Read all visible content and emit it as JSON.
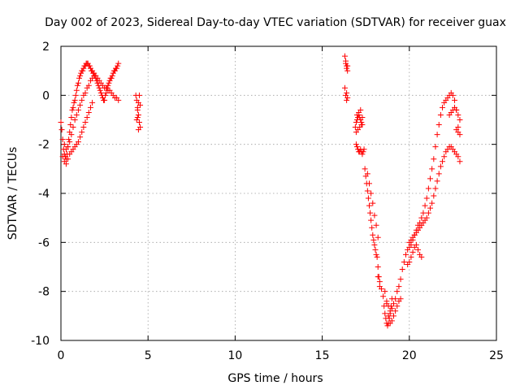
{
  "chart_data": {
    "type": "scatter",
    "title": "Day 002 of 2023, Sidereal Day-to-day VTEC variation (SDTVAR) for receiver guax",
    "xlabel": "GPS time / hours",
    "ylabel": "SDTVAR / TECUs",
    "xlim": [
      0,
      25
    ],
    "ylim": [
      -10,
      2
    ],
    "xticks": [
      0,
      5,
      10,
      15,
      20,
      25
    ],
    "yticks": [
      -10,
      -8,
      -6,
      -4,
      -2,
      0,
      2
    ],
    "xtick_labels": [
      "0",
      "5",
      "10",
      "15",
      "20",
      "25"
    ],
    "ytick_labels": [
      "-10",
      "-8",
      "-6",
      "-4",
      "-2",
      "0",
      "2"
    ],
    "grid": true,
    "marker": "+",
    "color": "#ff0000",
    "series": [
      {
        "name": "guax",
        "x": [
          0.0,
          0.05,
          0.1,
          0.15,
          0.2,
          0.25,
          0.3,
          0.35,
          0.4,
          0.45,
          0.5,
          0.55,
          0.6,
          0.65,
          0.7,
          0.75,
          0.8,
          0.85,
          0.9,
          0.95,
          1.0,
          1.05,
          1.1,
          1.15,
          1.2,
          1.25,
          1.3,
          1.35,
          1.4,
          1.45,
          1.5,
          1.55,
          1.6,
          1.65,
          1.7,
          1.75,
          1.8,
          1.85,
          1.9,
          1.95,
          2.0,
          2.05,
          2.1,
          2.15,
          2.2,
          2.25,
          2.3,
          2.35,
          2.4,
          2.45,
          2.5,
          2.55,
          2.6,
          2.65,
          2.7,
          2.75,
          2.8,
          2.85,
          2.9,
          2.95,
          3.0,
          3.05,
          3.1,
          3.15,
          3.2,
          3.25,
          3.3,
          0.2,
          0.3,
          0.4,
          0.5,
          0.6,
          0.7,
          0.8,
          0.9,
          1.0,
          1.1,
          1.2,
          1.3,
          1.4,
          1.5,
          1.6,
          1.7,
          1.8,
          1.9,
          2.0,
          2.1,
          2.2,
          2.3,
          2.4,
          2.5,
          2.6,
          2.7,
          2.8,
          2.9,
          3.0,
          3.1,
          3.2,
          3.3,
          0.1,
          0.2,
          0.3,
          0.4,
          0.5,
          0.6,
          0.7,
          0.8,
          0.9,
          1.0,
          1.1,
          1.2,
          1.3,
          1.4,
          1.5,
          1.6,
          1.7,
          1.8,
          4.3,
          4.35,
          4.4,
          4.45,
          4.5,
          4.55,
          4.35,
          4.4,
          4.45,
          4.5,
          4.55,
          4.4,
          4.45,
          16.3,
          16.35,
          16.4,
          16.45,
          16.3,
          16.35,
          16.4,
          16.45,
          16.35,
          16.4,
          16.45,
          16.4,
          16.9,
          16.95,
          17.0,
          17.05,
          17.1,
          17.15,
          17.2,
          17.25,
          17.3,
          16.95,
          17.05,
          17.15,
          17.25,
          17.0,
          17.1,
          17.2,
          17.3,
          16.95,
          17.0,
          17.05,
          17.1,
          17.15,
          17.2,
          17.25,
          17.3,
          17.35,
          17.4,
          17.45,
          17.5,
          17.55,
          17.6,
          17.65,
          17.7,
          17.75,
          17.8,
          17.85,
          17.9,
          17.95,
          18.0,
          18.05,
          18.1,
          18.15,
          18.2,
          18.25,
          18.3,
          17.6,
          17.7,
          17.8,
          17.9,
          18.0,
          18.1,
          18.2,
          18.2,
          18.3,
          18.4,
          18.5,
          18.55,
          18.6,
          18.65,
          18.7,
          18.75,
          18.8,
          18.85,
          18.9,
          18.95,
          19.0,
          18.6,
          18.7,
          18.8,
          18.9,
          19.0,
          19.1,
          19.2,
          19.3,
          19.4,
          19.5,
          18.7,
          18.8,
          18.9,
          19.0,
          19.1,
          19.2,
          19.3,
          19.4,
          19.5,
          19.6,
          19.7,
          19.8,
          19.9,
          20.0,
          20.1,
          20.2,
          20.3,
          20.4,
          20.5,
          20.6,
          20.7,
          20.8,
          20.9,
          21.0,
          21.1,
          21.2,
          21.3,
          21.4,
          21.5,
          21.6,
          21.7,
          21.8,
          21.9,
          22.0,
          22.1,
          22.2,
          22.3,
          22.4,
          22.5,
          22.6,
          22.7,
          22.8,
          20.0,
          20.1,
          20.2,
          20.3,
          20.4,
          20.5,
          20.6,
          20.7,
          20.8,
          20.9,
          21.0,
          21.1,
          21.2,
          21.3,
          21.4,
          21.5,
          21.6,
          21.7,
          21.8,
          21.9,
          22.0,
          22.1,
          22.2,
          22.3,
          22.4,
          22.5,
          22.6,
          22.7,
          22.8,
          22.9,
          19.9,
          20.0,
          20.1,
          20.2,
          20.3,
          20.4,
          20.5,
          20.6,
          20.7,
          22.3,
          22.4,
          22.5,
          22.6,
          22.7,
          22.8,
          22.9,
          22.7,
          22.8,
          22.9
        ],
        "y": [
          -1.1,
          -1.4,
          -1.8,
          -2.2,
          -2.4,
          -2.5,
          -2.6,
          -2.4,
          -2.1,
          -1.8,
          -1.5,
          -1.2,
          -0.9,
          -0.6,
          -0.5,
          -0.3,
          -0.2,
          0.0,
          0.2,
          0.4,
          0.5,
          0.7,
          0.8,
          0.9,
          1.0,
          1.0,
          1.1,
          1.2,
          1.2,
          1.3,
          1.3,
          1.3,
          1.2,
          1.2,
          1.1,
          1.0,
          1.0,
          0.9,
          0.9,
          0.8,
          0.7,
          0.6,
          0.5,
          0.4,
          0.3,
          0.2,
          0.1,
          0.0,
          -0.1,
          -0.2,
          -0.2,
          0.0,
          0.1,
          0.3,
          0.4,
          0.5,
          0.6,
          0.7,
          0.7,
          0.8,
          0.9,
          1.0,
          1.0,
          1.1,
          1.1,
          1.2,
          1.3,
          -2.0,
          -2.2,
          -2.1,
          -1.9,
          -1.6,
          -1.3,
          -1.0,
          -0.8,
          -0.6,
          -0.4,
          -0.2,
          0.0,
          0.1,
          0.3,
          0.4,
          0.6,
          0.7,
          0.8,
          0.8,
          0.7,
          0.6,
          0.5,
          0.4,
          0.3,
          0.3,
          0.2,
          0.2,
          0.1,
          0.0,
          -0.1,
          -0.1,
          -0.2,
          -2.5,
          -2.7,
          -2.8,
          -2.6,
          -2.4,
          -2.3,
          -2.2,
          -2.1,
          -2.0,
          -1.9,
          -1.7,
          -1.5,
          -1.3,
          -1.1,
          -0.9,
          -0.7,
          -0.5,
          -0.3,
          0.0,
          -0.2,
          -0.5,
          -0.8,
          -1.1,
          -1.3,
          -1.0,
          -0.6,
          -0.3,
          0.0,
          -0.4,
          -0.9,
          -1.4,
          1.6,
          1.4,
          1.2,
          1.0,
          0.3,
          0.0,
          -0.2,
          -0.1,
          1.3,
          1.1,
          1.2,
          0.1,
          -1.3,
          -1.1,
          -1.0,
          -0.9,
          -0.8,
          -0.9,
          -1.0,
          -1.1,
          -1.2,
          -1.5,
          -1.4,
          -1.3,
          -1.2,
          -0.8,
          -0.7,
          -0.6,
          -0.9,
          -2.0,
          -2.1,
          -2.2,
          -2.3,
          -2.3,
          -2.2,
          -2.3,
          -2.4,
          -2.3,
          -2.2,
          -3.0,
          -3.3,
          -3.6,
          -3.9,
          -4.2,
          -4.5,
          -4.8,
          -5.1,
          -5.4,
          -5.7,
          -5.9,
          -6.1,
          -6.3,
          -6.5,
          -6.6,
          -7.0,
          -7.4,
          -7.8,
          -3.2,
          -3.6,
          -4.0,
          -4.4,
          -4.9,
          -5.3,
          -5.8,
          -7.4,
          -7.6,
          -7.9,
          -8.2,
          -8.6,
          -8.9,
          -9.1,
          -9.3,
          -9.4,
          -9.3,
          -9.1,
          -8.9,
          -8.6,
          -8.3,
          -8.0,
          -8.5,
          -9.0,
          -9.3,
          -9.2,
          -9.0,
          -8.8,
          -8.6,
          -8.4,
          -8.3,
          -8.4,
          -8.6,
          -8.8,
          -8.7,
          -8.5,
          -8.3,
          -8.0,
          -7.8,
          -7.5,
          -7.1,
          -6.8,
          -6.5,
          -6.3,
          -6.2,
          -6.1,
          -5.9,
          -5.7,
          -5.5,
          -5.3,
          -5.2,
          -5.0,
          -4.8,
          -4.5,
          -4.2,
          -3.8,
          -3.4,
          -3.0,
          -2.6,
          -2.1,
          -1.6,
          -1.2,
          -0.8,
          -0.5,
          -0.3,
          -0.2,
          -0.1,
          0.0,
          0.1,
          0.0,
          -0.2,
          -0.6,
          -1.3,
          -6.0,
          -5.9,
          -5.8,
          -5.7,
          -5.6,
          -5.5,
          -5.4,
          -5.3,
          -5.2,
          -5.1,
          -5.0,
          -4.8,
          -4.6,
          -4.4,
          -4.1,
          -3.8,
          -3.5,
          -3.2,
          -2.9,
          -2.7,
          -2.5,
          -2.3,
          -2.2,
          -2.1,
          -2.1,
          -2.2,
          -2.3,
          -2.4,
          -2.5,
          -2.7,
          -6.9,
          -6.8,
          -6.6,
          -6.4,
          -6.2,
          -6.1,
          -6.3,
          -6.5,
          -6.6,
          -0.8,
          -0.7,
          -0.6,
          -0.5,
          -0.6,
          -0.8,
          -1.0,
          -1.4,
          -1.5,
          -1.6
        ]
      }
    ]
  }
}
